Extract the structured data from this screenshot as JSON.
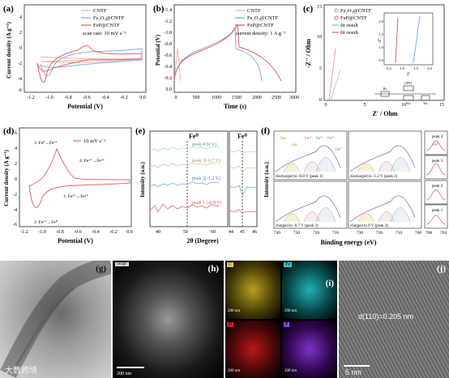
{
  "figure": {
    "colors": {
      "CNTF": "#f2b6a4",
      "Fe2O3@CNTF": "#7fb3e0",
      "FeP@CNTF": "#e0606a",
      "fit": "#333333",
      "pink_line": "#e06a70"
    },
    "a": {
      "label": "(a)",
      "legend": [
        "CNTF",
        "Fe₂O₃@CNTF",
        "FeP@CNTF"
      ],
      "note": "scan rate: 10 mV s⁻¹",
      "xlabel": "Potential (V)",
      "ylabel": "Current density (A g⁻¹)",
      "xticks": [
        "-1.2",
        "-1.0",
        "-0.8",
        "-0.6",
        "-0.4",
        "-0.2",
        "0.0"
      ],
      "yticks": [
        "4",
        "2",
        "0",
        "-2",
        "-4",
        "-6"
      ]
    },
    "b": {
      "label": "(b)",
      "legend": [
        "CNTF",
        "Fe₂O₃@CNTF",
        "FeP@CNTF"
      ],
      "note": "current density: 1 A g⁻¹",
      "xlabel": "Time (s)",
      "ylabel": "Potential (V)",
      "xticks": [
        "0",
        "500",
        "1000",
        "1500",
        "2000",
        "2500",
        "3000"
      ],
      "yticks": [
        "-1.4",
        "-1.2",
        "-1.0",
        "-0.8",
        "-0.6",
        "-0.4",
        "-0.2",
        "0.0"
      ]
    },
    "c": {
      "label": "(c)",
      "legend": [
        "Fe₂O₃@CNTF",
        "FeP@CNTF",
        "fit result",
        "fit result"
      ],
      "xlabel": "Z' / Ohm",
      "ylabel": "-Z'' / Ohm",
      "xticks": [
        "0",
        "5",
        "10",
        "15"
      ],
      "yticks": [
        "0",
        "5",
        "10",
        "15"
      ],
      "inset_xticks": [
        "0.5",
        "1.0",
        "1.5",
        "2.0"
      ],
      "inset_yticks": [
        "0.5",
        "1.0",
        "1.5",
        "2.0"
      ],
      "inset_xlabel": "Z'",
      "inset_ylabel": "-Z''",
      "circuit": [
        "Rs",
        "CPE1",
        "Rct",
        "Wo"
      ]
    },
    "d": {
      "label": "(d)",
      "legend": "10 mV s⁻¹",
      "annotations": [
        "3: Fe⁰→Fe²⁺",
        "4: Fe²⁺→Fe³⁺",
        "1: Fe³⁺→Fe²⁺",
        "2: Fe²⁺→Fe⁰"
      ],
      "xlabel": "Potential (V)",
      "ylabel": "Current density (A g⁻¹)",
      "xticks": [
        "-1.2",
        "-1.0",
        "-0.8",
        "-0.6",
        "-0.4",
        "-0.2",
        "0.0"
      ],
      "yticks": [
        "6",
        "4",
        "2",
        "0",
        "-2",
        "-4",
        "-6"
      ]
    },
    "e": {
      "label": "(e)",
      "traces": [
        "peak 4 (0 V)",
        "peak 3(-0.7 V)",
        "peak 2(-1.2 V)",
        "peak 1 (-0.8 V)"
      ],
      "marker": "Fe⁰",
      "xlabel": "2θ (Degree)",
      "ylabel": "Intensity (a.u.)",
      "xticks": [
        "40",
        "50",
        "60",
        "44",
        "45",
        "46"
      ]
    },
    "f": {
      "label": "(f)",
      "subpanels": [
        "discharged to -0.8 V (peak 1)",
        "discharged to -1.2 V (peak 2)",
        "charged to -0.7 V (peak 3)",
        "charged to 0 V (peak 4)"
      ],
      "peak_labels": [
        "Sat.",
        "Fe²⁺",
        "Fe³⁺",
        "Fe²⁺",
        "Fe⁰",
        "Sat."
      ],
      "side_labels": [
        "peak 4",
        "peak 3",
        "peak 2",
        "peak 1"
      ],
      "side_marker": "Fe⁰",
      "xlabel": "Binding energy (eV)",
      "ylabel": "Intensity (a.u.)",
      "xticks": [
        "740",
        "730",
        "720",
        "710",
        "730",
        "720",
        "710",
        "700"
      ],
      "side_xticks": [
        "708",
        "704"
      ]
    },
    "g": {
      "label": "(g)",
      "watermark": "大数跨境"
    },
    "h": {
      "label": "(h)",
      "scalebar": "200 nm",
      "tag": "Image"
    },
    "i": {
      "label": "(i)",
      "maps": [
        "C",
        "Fe",
        "O",
        "P"
      ],
      "scalebar": "200 nm"
    },
    "j": {
      "label": "(j)",
      "lattice": "d(110)=0.205 nm",
      "scalebar": "5 nm"
    }
  }
}
